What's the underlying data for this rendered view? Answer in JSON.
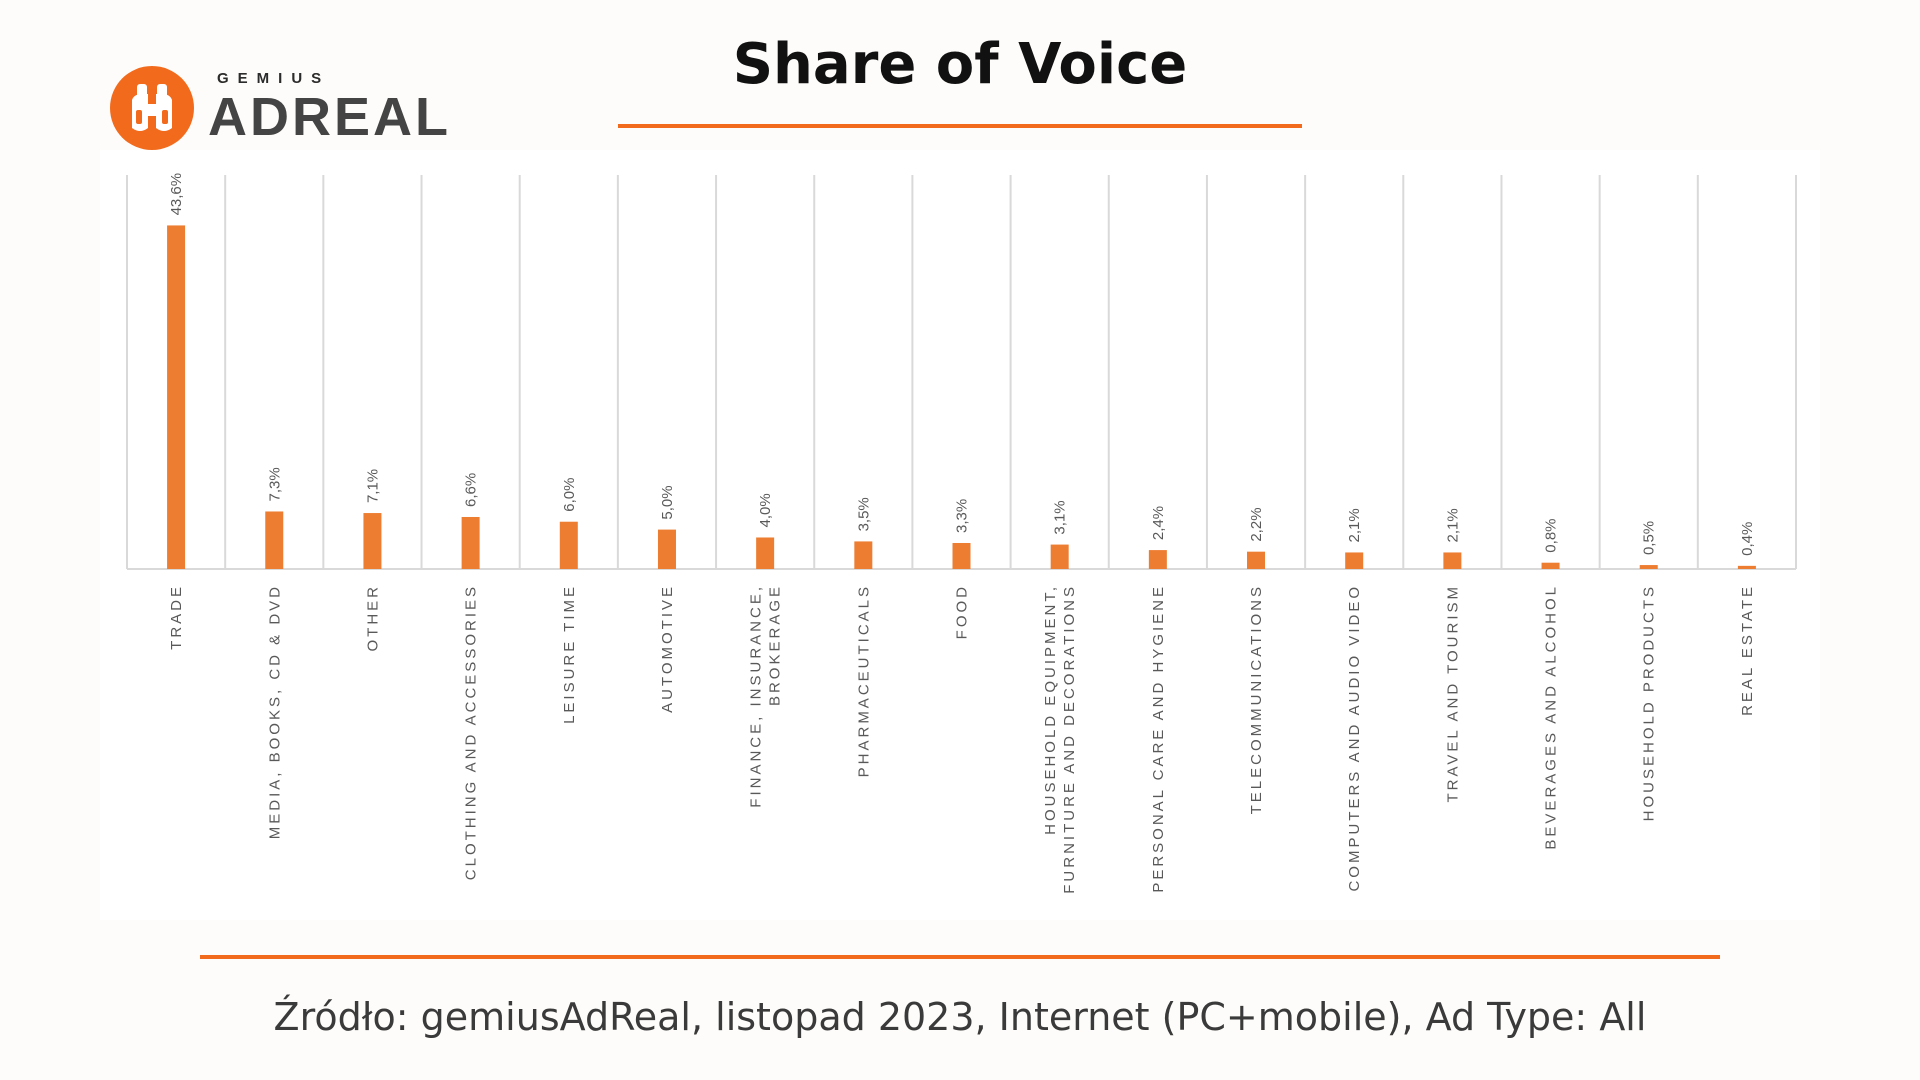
{
  "logo": {
    "small_text": "GEMIUS",
    "big_text": "ADREAL",
    "icon": "binoculars-icon",
    "color": "#f26b1d"
  },
  "title": "Share of Voice",
  "source": "Źródło: gemiusAdReal, listopad 2023, Internet (PC+mobile), Ad Type: All",
  "colors": {
    "accent": "#f26b1d",
    "bar": "#ed7d31",
    "grid": "#d9d9d9",
    "label": "#595959"
  },
  "chart_data": {
    "type": "bar",
    "title": "",
    "xlabel": "",
    "ylabel": "",
    "grid": "vertical category separators",
    "legend": "none",
    "ylim": [
      0,
      50
    ],
    "categories": [
      [
        "TRADE"
      ],
      [
        "MEDIA, BOOKS, CD & DVD"
      ],
      [
        "OTHER"
      ],
      [
        "CLOTHING AND ACCESSORIES"
      ],
      [
        "LEISURE TIME"
      ],
      [
        "AUTOMOTIVE"
      ],
      [
        "FINANCE, INSURANCE,",
        "BROKERAGE"
      ],
      [
        "PHARMACEUTICALS"
      ],
      [
        "FOOD"
      ],
      [
        "HOUSEHOLD EQUIPMENT,",
        "FURNITURE AND DECORATIONS"
      ],
      [
        "PERSONAL CARE AND HYGIENE"
      ],
      [
        "TELECOMMUNICATIONS"
      ],
      [
        "COMPUTERS AND AUDIO VIDEO"
      ],
      [
        "TRAVEL AND TOURISM"
      ],
      [
        "BEVERAGES AND ALCOHOL"
      ],
      [
        "HOUSEHOLD PRODUCTS"
      ],
      [
        "REAL ESTATE"
      ]
    ],
    "values": [
      43.6,
      7.3,
      7.1,
      6.6,
      6.0,
      5.0,
      4.0,
      3.5,
      3.3,
      3.1,
      2.4,
      2.2,
      2.1,
      2.1,
      0.8,
      0.5,
      0.4
    ],
    "value_labels": [
      "43,6%",
      "7,3%",
      "7,1%",
      "6,6%",
      "6,0%",
      "5,0%",
      "4,0%",
      "3,5%",
      "3,3%",
      "3,1%",
      "2,4%",
      "2,2%",
      "2,1%",
      "2,1%",
      "0,8%",
      "0,5%",
      "0,4%"
    ]
  }
}
